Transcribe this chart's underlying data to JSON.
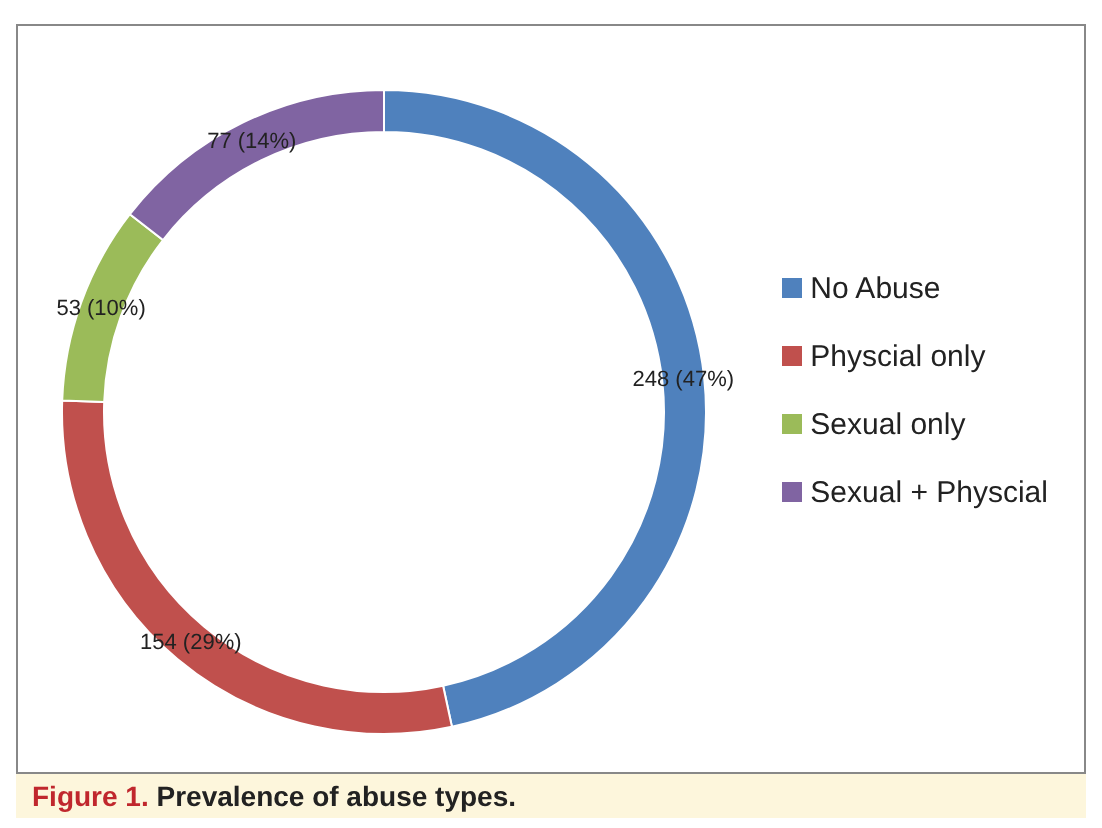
{
  "chart_data": {
    "type": "donut",
    "title": "Figure 1.  Prevalence of abuse types.",
    "categories": [
      "No Abuse",
      "Physcial only",
      "Sexual only",
      "Sexual + Physcial"
    ],
    "values": [
      248,
      154,
      53,
      77
    ],
    "colors": [
      "#4f81bd",
      "#c0504d",
      "#9bbb59",
      "#8064a2"
    ],
    "value_labels": [
      "248 (47%)",
      "154 (29%)",
      "53 (10%)",
      "77 (14%)"
    ],
    "legend": "right"
  }
}
